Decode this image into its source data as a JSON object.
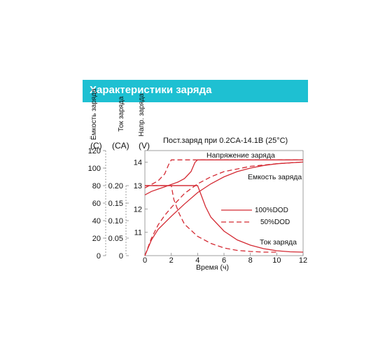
{
  "banner": {
    "title": "Характеристики заряда",
    "color": "#1ec0d2"
  },
  "chart_data": {
    "type": "line",
    "title": "Пост.заряд при 0.2CA-14.1B (25°C)",
    "xlabel": "Время (ч)",
    "x_ticks": [
      0,
      2,
      4,
      6,
      8,
      10,
      12
    ],
    "xlim": [
      0,
      12
    ],
    "axes": {
      "capacity": {
        "name": "Ёмкость заряда",
        "unit": "(C)",
        "ticks": [
          0,
          20,
          40,
          60,
          80,
          100,
          120
        ],
        "range": [
          0,
          120
        ]
      },
      "current": {
        "name": "Ток заряда",
        "unit": "(CA)",
        "ticks": [
          "0",
          "0.05",
          "0.10",
          "0.15",
          "0.20"
        ],
        "range": [
          0,
          0.3
        ]
      },
      "voltage": {
        "name": "Напр. заряда",
        "unit": "(V)",
        "ticks": [
          11,
          12,
          13,
          14
        ],
        "range": [
          10,
          14.5
        ]
      }
    },
    "legend": {
      "position": "right",
      "items": [
        {
          "label": "100%DOD",
          "style": "solid"
        },
        {
          "label": "50%DOD",
          "style": "dashed"
        }
      ]
    },
    "annotations": {
      "voltage": "Напряжение заряда",
      "capacity": "Емкость заряда",
      "current": "Ток заряда"
    },
    "line_color": "#d42a33",
    "series": [
      {
        "curve": "voltage",
        "dod": "100%",
        "axis": "voltage",
        "x": [
          0,
          0.5,
          1,
          1.5,
          2,
          2.5,
          3,
          3.5,
          3.8,
          4,
          12
        ],
        "y": [
          12.6,
          12.75,
          12.85,
          12.95,
          13.05,
          13.15,
          13.3,
          13.6,
          14.0,
          14.1,
          14.1
        ]
      },
      {
        "curve": "voltage",
        "dod": "50%",
        "axis": "voltage",
        "x": [
          0,
          0.5,
          1,
          1.5,
          1.8,
          2,
          12
        ],
        "y": [
          12.9,
          13.05,
          13.2,
          13.5,
          13.9,
          14.1,
          14.1
        ]
      },
      {
        "curve": "capacity",
        "dod": "100%",
        "axis": "capacity",
        "x": [
          0,
          0.5,
          1,
          2,
          3,
          4,
          5,
          6,
          7,
          8,
          9,
          10,
          11,
          12
        ],
        "y": [
          0,
          18,
          30,
          45,
          59,
          72,
          82,
          90,
          96,
          100,
          103,
          105,
          106,
          107
        ]
      },
      {
        "curve": "capacity",
        "dod": "50%",
        "axis": "capacity",
        "x": [
          0,
          0.5,
          1,
          1.5,
          2,
          3,
          4,
          5,
          6,
          8,
          10,
          12
        ],
        "y": [
          0,
          20,
          35,
          46,
          55,
          71,
          82,
          90,
          96,
          102,
          105,
          107
        ]
      },
      {
        "curve": "current",
        "dod": "100%",
        "axis": "current",
        "x": [
          0,
          4,
          4.2,
          4.6,
          5,
          6,
          7,
          8,
          9,
          10,
          11,
          12
        ],
        "y": [
          0.2,
          0.2,
          0.18,
          0.14,
          0.11,
          0.07,
          0.045,
          0.03,
          0.02,
          0.014,
          0.011,
          0.01
        ]
      },
      {
        "curve": "current",
        "dod": "50%",
        "axis": "current",
        "x": [
          0,
          2,
          2.2,
          2.6,
          3,
          4,
          5,
          6,
          7,
          8,
          9,
          10
        ],
        "y": [
          0.2,
          0.2,
          0.16,
          0.12,
          0.09,
          0.055,
          0.035,
          0.022,
          0.015,
          0.012,
          0.01,
          0.01
        ]
      }
    ]
  }
}
